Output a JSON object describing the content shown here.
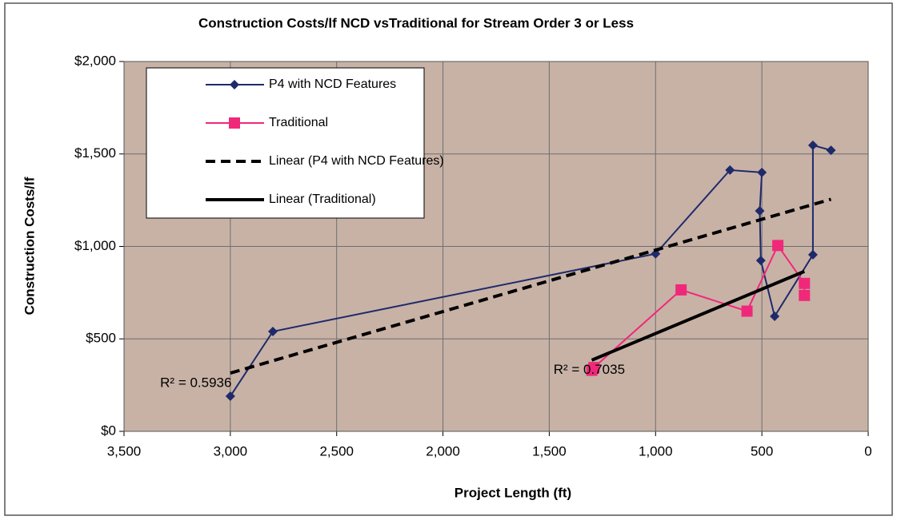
{
  "chart_data": {
    "type": "line",
    "title": "Construction Costs/lf NCD vsTraditional for Stream Order 3 or Less",
    "x_label": "Project Length (ft)",
    "y_label": "Construction Costs/lf",
    "xlim": [
      3500,
      0
    ],
    "xticks": [
      {
        "value": 3500,
        "label": "3,500"
      },
      {
        "value": 3000,
        "label": "3,000"
      },
      {
        "value": 2500,
        "label": "2,500"
      },
      {
        "value": 2000,
        "label": "2,000"
      },
      {
        "value": 1500,
        "label": "1,500"
      },
      {
        "value": 1000,
        "label": "1,000"
      },
      500,
      0
    ],
    "ylim": [
      0,
      2000
    ],
    "yticks": [
      {
        "value": 0,
        "label": "$0"
      },
      {
        "value": 500,
        "label": "$500"
      },
      {
        "value": 1000,
        "label": "$1,000"
      },
      {
        "value": 1500,
        "label": "$1,500"
      },
      {
        "value": 2000,
        "label": "$2,000"
      }
    ],
    "grid": true,
    "legend": "upper left",
    "series": [
      {
        "name": "P4 with NCD Features",
        "color": "#1f2a6b",
        "marker": "diamond",
        "dash": "solid",
        "x": [
          3000,
          2800,
          1000,
          650,
          500,
          510,
          505,
          440,
          260,
          260,
          175
        ],
        "values": [
          190,
          540,
          960,
          1413,
          1400,
          1192,
          924,
          622,
          955,
          1547,
          1520
        ]
      },
      {
        "name": "Traditional",
        "color": "#f0287a",
        "marker": "square",
        "dash": "solid",
        "x": [
          1300,
          1290,
          880,
          570,
          425,
          300,
          300
        ],
        "values": [
          330,
          345,
          765,
          650,
          1005,
          800,
          735
        ]
      },
      {
        "name": "Linear (P4 with NCD Features)",
        "color": "#000000",
        "marker": "none",
        "dash": "dashed",
        "x": [
          3000,
          175
        ],
        "values": [
          315,
          1255
        ]
      },
      {
        "name": "Linear (Traditional)",
        "color": "#000000",
        "marker": "none",
        "dash": "solid",
        "x": [
          1300,
          300
        ],
        "values": [
          385,
          865
        ]
      }
    ],
    "annotations": [
      {
        "text": "R² = 0.5936",
        "x": 3330,
        "y": 320
      },
      {
        "text": "R² = 0.7035",
        "x": 1480,
        "y": 390
      }
    ]
  }
}
